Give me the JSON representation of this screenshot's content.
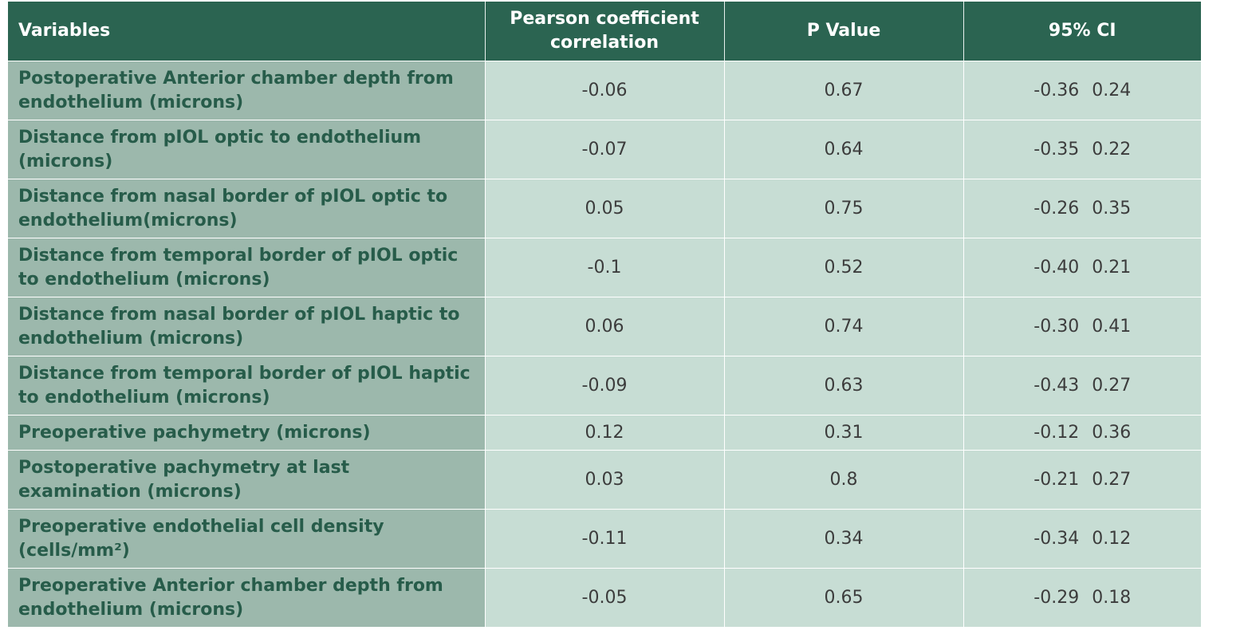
{
  "table": {
    "headers": {
      "variables": "Variables",
      "pearson": "Pearson coefficient correlation",
      "p_value": "P Value",
      "ci": "95% CI"
    },
    "rows": [
      {
        "variable": "Postoperative Anterior chamber depth from endothelium (microns)",
        "pearson": "-0.06",
        "p_value": "0.67",
        "ci_low": "-0.36",
        "ci_high": "0.24"
      },
      {
        "variable": "Distance from pIOL optic to endothelium (microns)",
        "pearson": "-0.07",
        "p_value": "0.64",
        "ci_low": "-0.35",
        "ci_high": "0.22"
      },
      {
        "variable": "Distance from nasal border of pIOL optic to endothelium(microns)",
        "pearson": "0.05",
        "p_value": "0.75",
        "ci_low": "-0.26",
        "ci_high": "0.35"
      },
      {
        "variable": "Distance from temporal border of pIOL optic to endothelium (microns)",
        "pearson": "-0.1",
        "p_value": "0.52",
        "ci_low": "-0.40",
        "ci_high": "0.21"
      },
      {
        "variable": "Distance from nasal border of pIOL haptic to endothelium (microns)",
        "pearson": "0.06",
        "p_value": "0.74",
        "ci_low": "-0.30",
        "ci_high": "0.41"
      },
      {
        "variable": "Distance from temporal border of pIOL haptic to endothelium (microns)",
        "pearson": "-0.09",
        "p_value": "0.63",
        "ci_low": "-0.43",
        "ci_high": "0.27"
      },
      {
        "variable": "Preoperative pachymetry (microns)",
        "pearson": "0.12",
        "p_value": "0.31",
        "ci_low": "-0.12",
        "ci_high": "0.36"
      },
      {
        "variable": "Postoperative pachymetry at last examination (microns)",
        "pearson": "0.03",
        "p_value": "0.8",
        "ci_low": "-0.21",
        "ci_high": "0.27"
      },
      {
        "variable": "Preoperative endothelial cell density (cells/mm²)",
        "pearson": "-0.11",
        "p_value": "0.34",
        "ci_low": "-0.34",
        "ci_high": "0.12"
      },
      {
        "variable": "Preoperative Anterior chamber depth from endothelium (microns)",
        "pearson": "-0.05",
        "p_value": "0.65",
        "ci_low": "-0.29",
        "ci_high": "0.18"
      }
    ]
  }
}
